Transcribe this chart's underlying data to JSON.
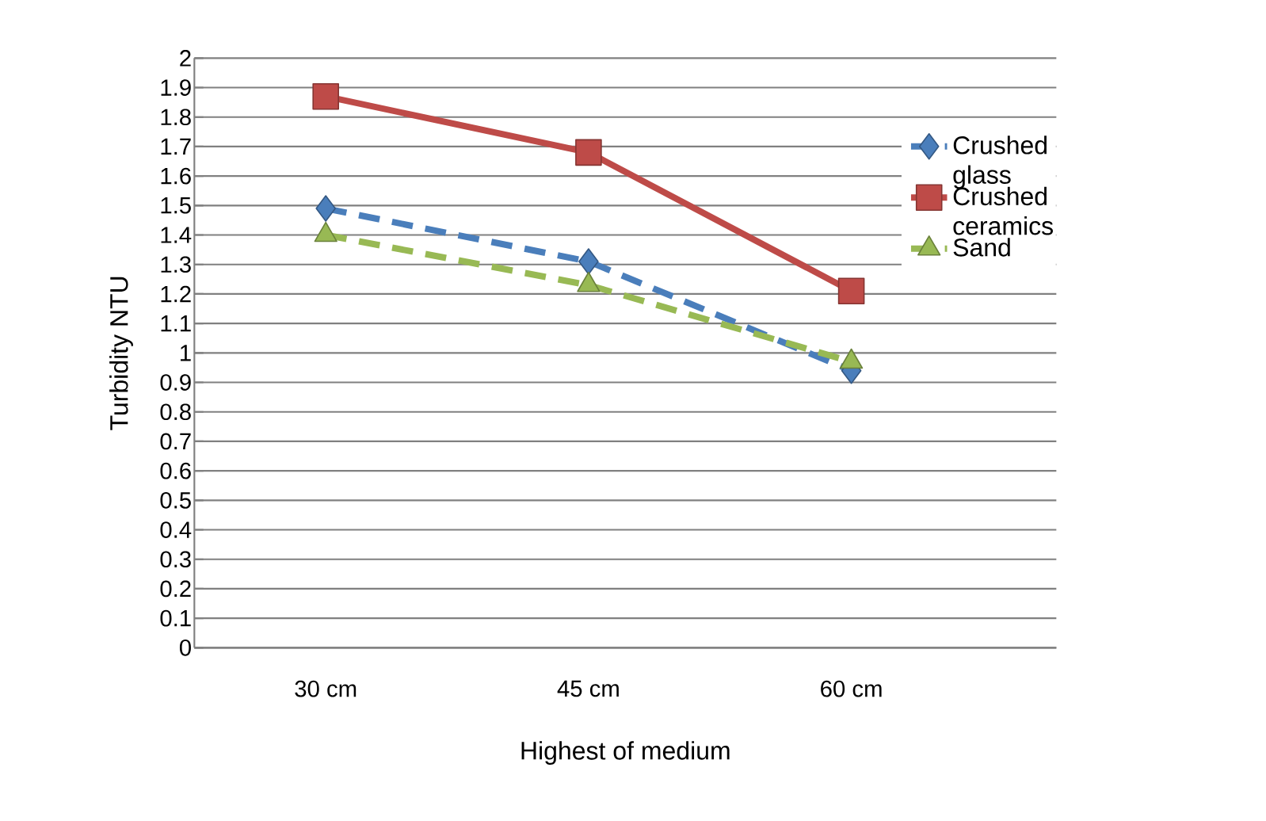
{
  "chart_data": {
    "type": "line",
    "xlabel": "Highest of medium",
    "ylabel": "Turbidity      NTU",
    "categories": [
      "30 cm",
      "45 cm",
      "60 cm"
    ],
    "series": [
      {
        "name": "Crushed glass",
        "color": "#4a7ebb",
        "values": [
          1.49,
          1.31,
          0.94
        ],
        "marker": "diamond",
        "line_style": "dashed"
      },
      {
        "name": "Crushed ceramics",
        "color": "#be4b48",
        "values": [
          1.87,
          1.68,
          1.21
        ],
        "marker": "square",
        "line_style": "solid"
      },
      {
        "name": "Sand",
        "color": "#98b954",
        "values": [
          1.4,
          1.23,
          0.97
        ],
        "marker": "triangle",
        "line_style": "dashed"
      }
    ],
    "ylim": [
      0,
      2
    ],
    "yticks": [
      0,
      0.1,
      0.2,
      0.3,
      0.4,
      0.5,
      0.6,
      0.7,
      0.8,
      0.9,
      1,
      1.1,
      1.2,
      1.3,
      1.4,
      1.5,
      1.6,
      1.7,
      1.8,
      1.9,
      2
    ],
    "grid": "y",
    "legend": "right"
  }
}
